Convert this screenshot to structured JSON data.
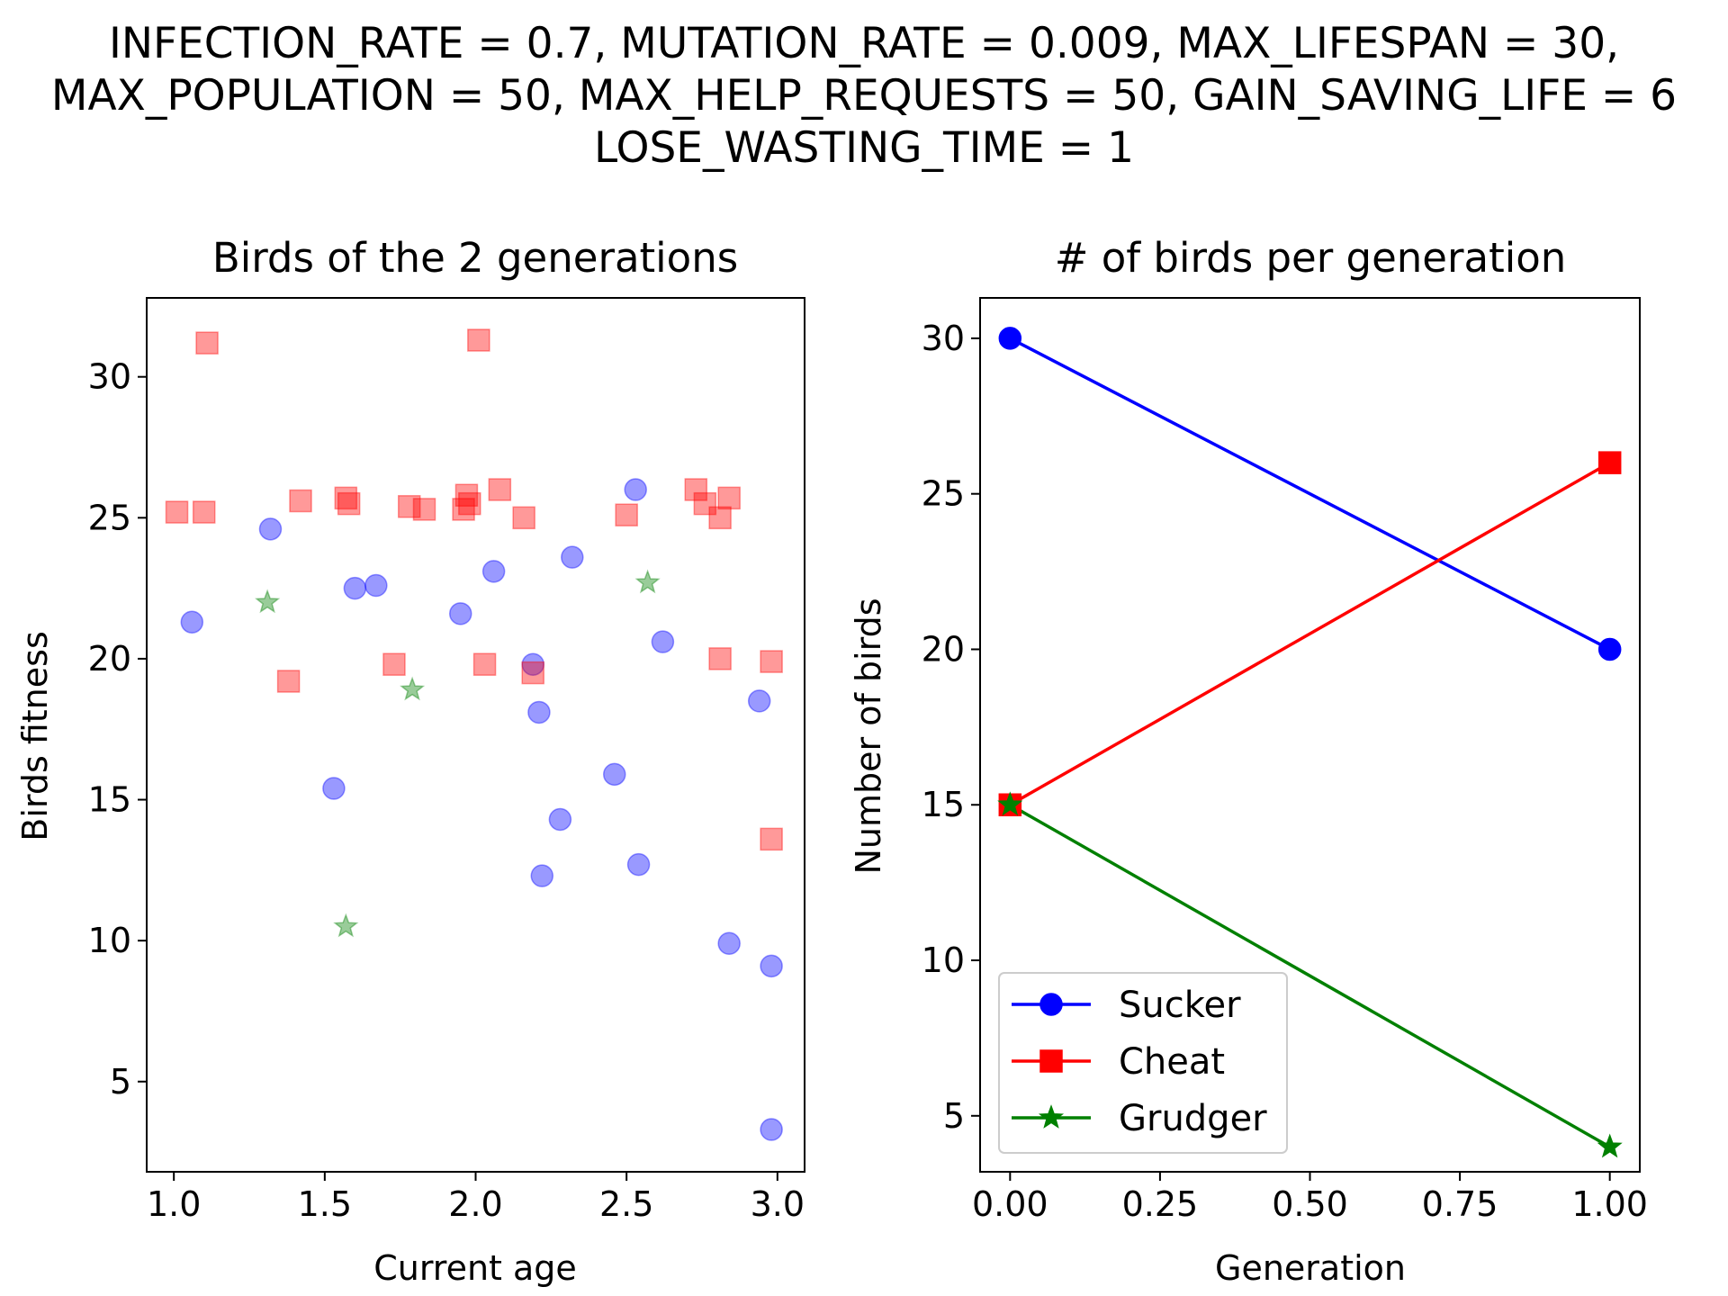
{
  "figure_title": [
    "INFECTION_RATE = 0.7, MUTATION_RATE = 0.009, MAX_LIFESPAN = 30,",
    "MAX_POPULATION = 50, MAX_HELP_REQUESTS = 50, GAIN_SAVING_LIFE = 6",
    "LOSE_WASTING_TIME = 1"
  ],
  "colors": {
    "sucker": "#0000ff",
    "cheat": "#ff0000",
    "grudger": "#008000"
  },
  "chart_data": [
    {
      "type": "scatter",
      "title": "Birds of the 2 generations",
      "xlabel": "Current age",
      "ylabel": "Birds fitness",
      "xlim": [
        0.91,
        3.09
      ],
      "ylim": [
        1.8,
        32.8
      ],
      "xticks": [
        "1.0",
        "1.5",
        "2.0",
        "2.5",
        "3.0"
      ],
      "yticks": [
        "5",
        "10",
        "15",
        "20",
        "25",
        "30"
      ],
      "grid": false,
      "series": [
        {
          "key": "sucker",
          "marker": "circle",
          "points": [
            [
              1.06,
              21.3
            ],
            [
              1.32,
              24.6
            ],
            [
              1.53,
              15.4
            ],
            [
              1.6,
              22.5
            ],
            [
              1.67,
              22.6
            ],
            [
              1.95,
              21.6
            ],
            [
              2.06,
              23.1
            ],
            [
              2.19,
              19.8
            ],
            [
              2.21,
              18.1
            ],
            [
              2.22,
              12.3
            ],
            [
              2.28,
              14.3
            ],
            [
              2.32,
              23.6
            ],
            [
              2.46,
              15.9
            ],
            [
              2.53,
              26.0
            ],
            [
              2.54,
              12.7
            ],
            [
              2.62,
              20.6
            ],
            [
              2.84,
              9.9
            ],
            [
              2.94,
              18.5
            ],
            [
              2.98,
              9.1
            ],
            [
              2.98,
              3.3
            ]
          ]
        },
        {
          "key": "cheat",
          "marker": "square",
          "points": [
            [
              1.01,
              25.2
            ],
            [
              1.1,
              25.2
            ],
            [
              1.11,
              31.2
            ],
            [
              1.38,
              19.2
            ],
            [
              1.42,
              25.6
            ],
            [
              1.57,
              25.7
            ],
            [
              1.58,
              25.5
            ],
            [
              1.73,
              19.8
            ],
            [
              1.78,
              25.4
            ],
            [
              1.83,
              25.3
            ],
            [
              1.96,
              25.3
            ],
            [
              1.97,
              25.8
            ],
            [
              1.98,
              25.5
            ],
            [
              2.01,
              31.3
            ],
            [
              2.03,
              19.8
            ],
            [
              2.08,
              26.0
            ],
            [
              2.16,
              25.0
            ],
            [
              2.19,
              19.5
            ],
            [
              2.5,
              25.1
            ],
            [
              2.73,
              26.0
            ],
            [
              2.76,
              25.5
            ],
            [
              2.81,
              25.0
            ],
            [
              2.81,
              20.0
            ],
            [
              2.84,
              25.7
            ],
            [
              2.98,
              19.9
            ],
            [
              2.98,
              13.6
            ]
          ]
        },
        {
          "key": "grudger",
          "marker": "star",
          "points": [
            [
              1.31,
              22.0
            ],
            [
              1.57,
              10.5
            ],
            [
              1.79,
              18.9
            ],
            [
              2.57,
              22.7
            ]
          ]
        }
      ]
    },
    {
      "type": "line",
      "title": "# of birds per generation",
      "xlabel": "Generation",
      "ylabel": "Number of birds",
      "xlim": [
        -0.05,
        1.05
      ],
      "ylim": [
        3.2,
        31.3
      ],
      "xticks": [
        "0.00",
        "0.25",
        "0.50",
        "0.75",
        "1.00"
      ],
      "yticks": [
        "5",
        "10",
        "15",
        "20",
        "25",
        "30"
      ],
      "grid": false,
      "legend": "lower-left",
      "x": [
        0,
        1
      ],
      "series": [
        {
          "name": "Sucker",
          "key": "sucker",
          "marker": "circle",
          "values": [
            30,
            20
          ]
        },
        {
          "name": "Cheat",
          "key": "cheat",
          "marker": "square",
          "values": [
            15,
            26
          ]
        },
        {
          "name": "Grudger",
          "key": "grudger",
          "marker": "star",
          "values": [
            15,
            4
          ]
        }
      ]
    }
  ]
}
